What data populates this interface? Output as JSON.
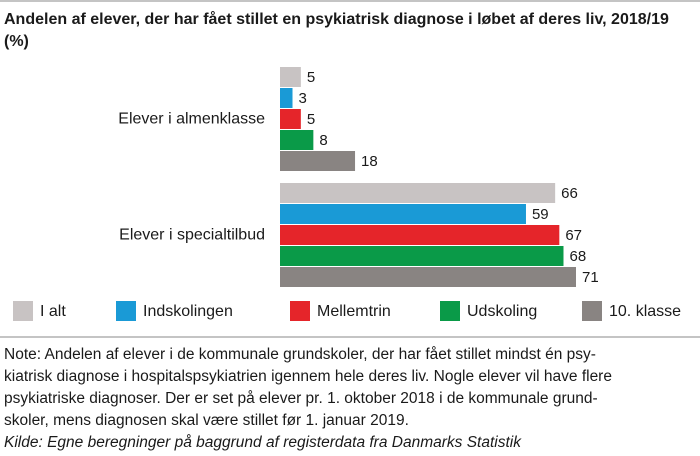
{
  "chart_data": {
    "type": "hbar",
    "title": [
      "Andelen af elever, der har fået stillet en psykiatrisk diagnose i løbet af deres liv, 2018/19",
      "(%)"
    ],
    "categories": [
      "Elever i almenklasse",
      "Elever i specialtilbud"
    ],
    "series": [
      {
        "name": "I alt",
        "color": "#c8c3c3",
        "values": [
          5,
          66
        ]
      },
      {
        "name": "Indskolingen",
        "color": "#1a9ad6",
        "values": [
          3,
          59
        ]
      },
      {
        "name": "Mellemtrin",
        "color": "#e5252a",
        "values": [
          5,
          67
        ]
      },
      {
        "name": "Udskoling",
        "color": "#0a9a48",
        "values": [
          8,
          68
        ]
      },
      {
        "name": "10. klasse",
        "color": "#898482",
        "values": [
          18,
          71
        ]
      }
    ],
    "note": [
      "Note: Andelen af elever i de kommunale grundskoler, der har fået stillet mindst én psy-",
      "kiatrisk diagnose i hospitalspsykiatrien igennem hele deres liv. Nogle elever vil have flere",
      "psykiatriske diagnoser. Der er set på elever pr. 1. oktober 2018 i de kommunale grund-",
      "skoler, mens diagnosen skal være stillet før 1. januar 2019."
    ],
    "source": "Kilde: Egne beregninger på baggrund af registerdata fra Danmarks Statistik"
  }
}
